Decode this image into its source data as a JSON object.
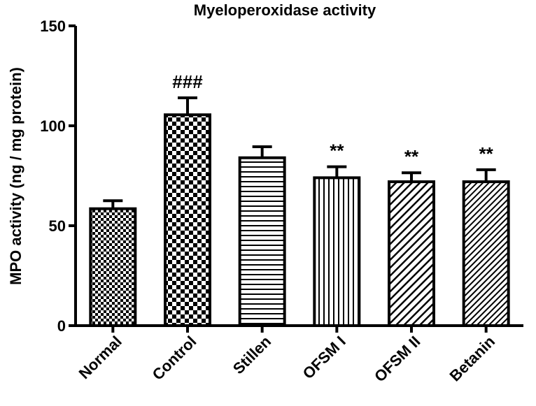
{
  "chart_data": {
    "type": "bar",
    "title": "Myeloperoxidase activity",
    "ylabel": "MPO activity (ng / mg protein)",
    "xlabel": "",
    "ylim": [
      0,
      150
    ],
    "yticks": [
      0,
      50,
      100,
      150
    ],
    "grid": false,
    "legend": "none",
    "categories": [
      "Normal",
      "Control",
      "Stillen",
      "OFSM I",
      "OFSM II",
      "Betanin"
    ],
    "values": [
      58.5,
      105.5,
      84.0,
      74.0,
      72.0,
      72.0
    ],
    "errors": [
      4.0,
      8.5,
      5.5,
      5.5,
      4.5,
      6.0
    ],
    "annotations": [
      "",
      "###",
      "",
      "**",
      "**",
      "**"
    ],
    "patterns": [
      "small-checker",
      "large-checker",
      "horizontal-lines",
      "vertical-lines",
      "diagonal-lines",
      "diagonal-lines-dense"
    ],
    "bar_color": "#000000",
    "background": "#ffffff"
  }
}
